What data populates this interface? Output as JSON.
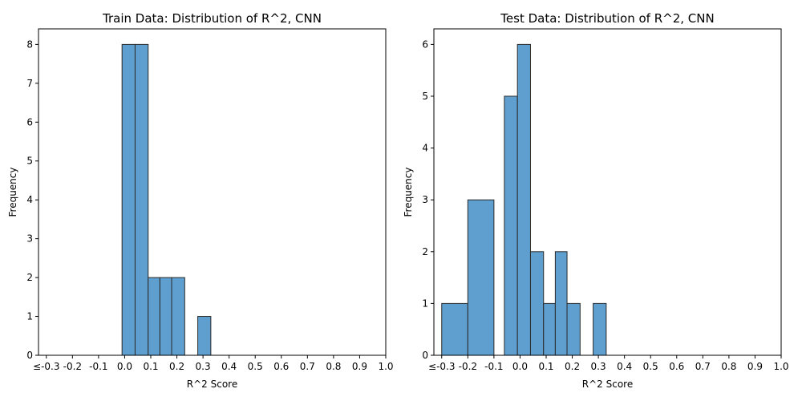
{
  "chart_data": [
    {
      "type": "bar",
      "title": "Train Data: Distribution of R^2, CNN",
      "xlabel": "R^2 Score",
      "ylabel": "Frequency",
      "xlim": [
        -0.33,
        1.0
      ],
      "ylim": [
        0,
        8.4
      ],
      "x_ticks": [
        "≤-0.3",
        "-0.2",
        "-0.1",
        "0.0",
        "0.1",
        "0.2",
        "0.3",
        "0.4",
        "0.5",
        "0.6",
        "0.7",
        "0.8",
        "0.9",
        "1.0"
      ],
      "y_ticks": [
        0,
        1,
        2,
        3,
        4,
        5,
        6,
        7,
        8
      ],
      "bar_color": "#5f9fcf",
      "edge_color": "#2a2a2a",
      "bins": [
        {
          "x0": -0.01,
          "x1": 0.04,
          "value": 8
        },
        {
          "x0": 0.04,
          "x1": 0.09,
          "value": 8
        },
        {
          "x0": 0.09,
          "x1": 0.135,
          "value": 2
        },
        {
          "x0": 0.135,
          "x1": 0.18,
          "value": 2
        },
        {
          "x0": 0.18,
          "x1": 0.23,
          "value": 2
        },
        {
          "x0": 0.28,
          "x1": 0.33,
          "value": 1
        }
      ]
    },
    {
      "type": "bar",
      "title": "Test Data: Distribution of R^2, CNN",
      "xlabel": "R^2 Score",
      "ylabel": "Frequency",
      "xlim": [
        -0.33,
        1.0
      ],
      "ylim": [
        0,
        6.3
      ],
      "x_ticks": [
        "≤-0.3",
        "-0.2",
        "-0.1",
        "0.0",
        "0.1",
        "0.2",
        "0.3",
        "0.4",
        "0.5",
        "0.6",
        "0.7",
        "0.8",
        "0.9",
        "1.0"
      ],
      "y_ticks": [
        0,
        1,
        2,
        3,
        4,
        5,
        6
      ],
      "bar_color": "#5f9fcf",
      "edge_color": "#2a2a2a",
      "bins": [
        {
          "x0": -0.3,
          "x1": -0.2,
          "value": 1
        },
        {
          "x0": -0.2,
          "x1": -0.1,
          "value": 3
        },
        {
          "x0": -0.06,
          "x1": -0.01,
          "value": 5
        },
        {
          "x0": -0.01,
          "x1": 0.04,
          "value": 6
        },
        {
          "x0": 0.04,
          "x1": 0.09,
          "value": 2
        },
        {
          "x0": 0.09,
          "x1": 0.135,
          "value": 1
        },
        {
          "x0": 0.135,
          "x1": 0.18,
          "value": 2
        },
        {
          "x0": 0.18,
          "x1": 0.23,
          "value": 1
        },
        {
          "x0": 0.28,
          "x1": 0.33,
          "value": 1
        }
      ]
    }
  ]
}
